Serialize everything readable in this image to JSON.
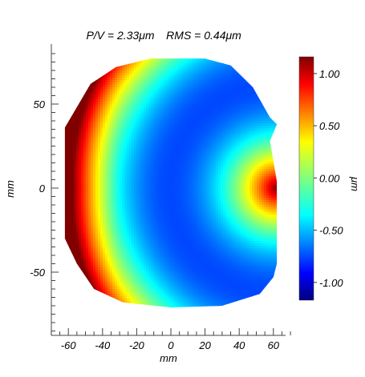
{
  "chart_data": {
    "type": "heatmap",
    "title": "P/V = 2.33μm      RMS = 0.44μm",
    "pv": "P/V = 2.33μm",
    "rms": "RMS = 0.44μm",
    "xlabel": "mm",
    "ylabel": "mm",
    "xlim": [
      -75,
      75
    ],
    "ylim": [
      -85,
      85
    ],
    "x_ticks": [
      -60,
      -40,
      -20,
      0,
      20,
      40,
      60
    ],
    "y_ticks": [
      50,
      0,
      -50
    ],
    "colorbar": {
      "label": "μm",
      "range": [
        -1.17,
        1.16
      ],
      "ticks": [
        "1.00",
        "0.50",
        "0.00",
        "-0.50",
        "-1.00"
      ],
      "tick_values": [
        1.0,
        0.5,
        0.0,
        -0.5,
        -1.0
      ],
      "colormap": "jet"
    },
    "surface": {
      "description_values": {
        "max_um": 1.16,
        "min_um": -1.17,
        "peak_location_mm": [
          62,
          0
        ]
      },
      "outline_mm": [
        [
          -62,
          36
        ],
        [
          -47,
          62
        ],
        [
          -32,
          72
        ],
        [
          -12,
          77
        ],
        [
          20,
          77
        ],
        [
          35,
          73
        ],
        [
          48,
          60
        ],
        [
          58,
          42
        ],
        [
          62,
          38
        ],
        [
          58,
          28
        ],
        [
          62,
          4
        ],
        [
          62,
          -5
        ],
        [
          62,
          -45
        ],
        [
          60,
          -53
        ],
        [
          52,
          -63
        ],
        [
          30,
          -70
        ],
        [
          0,
          -71
        ],
        [
          -28,
          -68
        ],
        [
          -45,
          -60
        ],
        [
          -55,
          -45
        ],
        [
          -62,
          -30
        ]
      ]
    },
    "grid": false
  }
}
